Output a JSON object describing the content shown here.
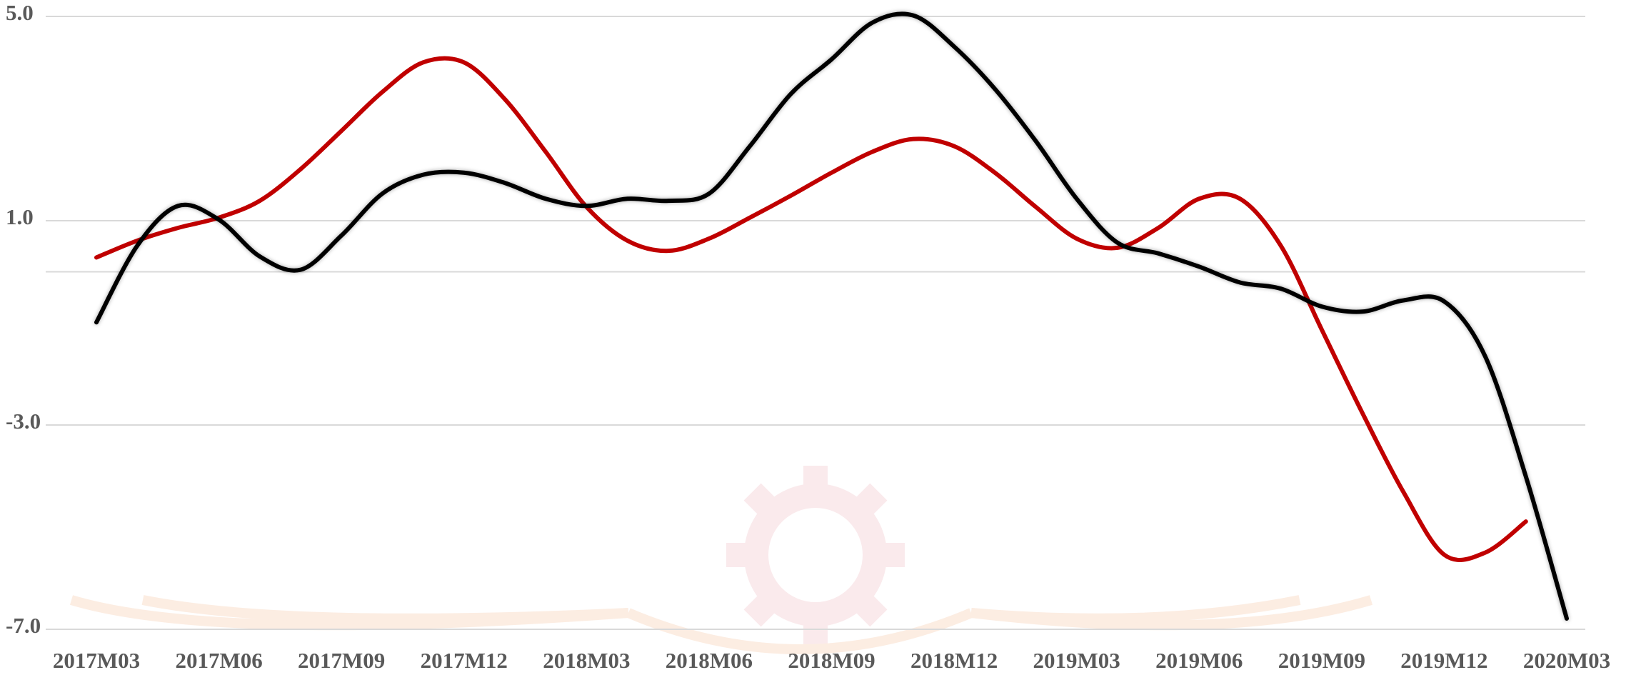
{
  "chart_data": {
    "type": "line",
    "categories": [
      "2017M03",
      null,
      null,
      "2017M06",
      null,
      null,
      "2017M09",
      null,
      null,
      "2017M12",
      null,
      null,
      "2018M03",
      null,
      null,
      "2018M06",
      null,
      null,
      "2018M09",
      null,
      null,
      "2018M12",
      null,
      null,
      "2019M03",
      null,
      null,
      "2019M06",
      null,
      null,
      "2019M09",
      null,
      null,
      "2019M12",
      null,
      null,
      "2020M03"
    ],
    "series": [
      {
        "color": "#c00000",
        "values": [
          0.28,
          0.61,
          0.86,
          1.06,
          1.39,
          2.01,
          2.76,
          3.52,
          4.1,
          4.1,
          3.38,
          2.35,
          1.27,
          0.61,
          0.41,
          0.65,
          1.06,
          1.49,
          1.94,
          2.35,
          2.6,
          2.46,
          1.94,
          1.27,
          0.65,
          0.47,
          0.86,
          1.43,
          1.43,
          0.51,
          -1.13,
          -2.77,
          -4.31,
          -5.54,
          -5.5,
          -4.89,
          null
        ]
      },
      {
        "color": "#000000",
        "values": [
          -0.99,
          0.51,
          1.29,
          1.02,
          0.3,
          0.04,
          0.71,
          1.53,
          1.9,
          1.94,
          1.74,
          1.43,
          1.29,
          1.43,
          1.39,
          1.53,
          2.46,
          3.48,
          4.16,
          4.88,
          5.02,
          4.41,
          3.58,
          2.56,
          1.43,
          0.57,
          0.36,
          0.1,
          -0.21,
          -0.33,
          -0.68,
          -0.78,
          -0.56,
          -0.58,
          -1.65,
          -4.01,
          -6.79
        ]
      }
    ],
    "ylim": [
      -7,
      5
    ],
    "yticks": [
      {
        "value": -7,
        "label": "-7.0"
      },
      {
        "value": -3,
        "label": "-3.0"
      },
      {
        "value": 1,
        "label": "1.0"
      },
      {
        "value": 5,
        "label": "5.0"
      }
    ],
    "grid": true,
    "zero_line": true,
    "smooth": true
  }
}
